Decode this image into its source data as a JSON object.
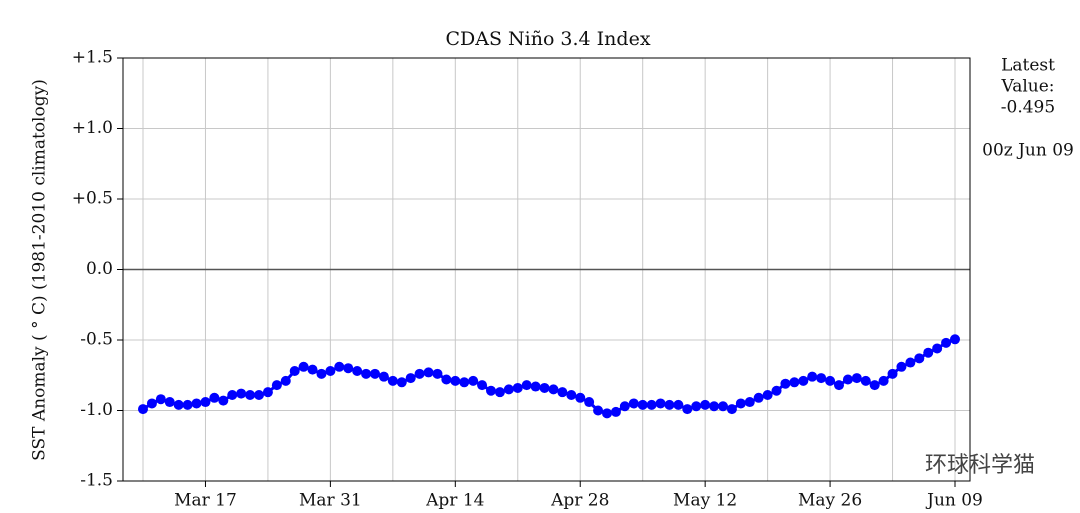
{
  "chart_data": {
    "type": "line",
    "title": "CDAS Niño 3.4 Index",
    "y_label": "SST Anomaly ( ° C) (1981-2010 climatology)",
    "side_note": [
      "Latest",
      "Value:",
      "-0.495"
    ],
    "timestamp": "00z Jun 09",
    "watermark": "环球科学猫",
    "categories": [
      "Mar 10",
      "Mar 11",
      "Mar 12",
      "Mar 13",
      "Mar 14",
      "Mar 15",
      "Mar 16",
      "Mar 17",
      "Mar 18",
      "Mar 19",
      "Mar 20",
      "Mar 21",
      "Mar 22",
      "Mar 23",
      "Mar 24",
      "Mar 25",
      "Mar 26",
      "Mar 27",
      "Mar 28",
      "Mar 29",
      "Mar 30",
      "Mar 31",
      "Apr 01",
      "Apr 02",
      "Apr 03",
      "Apr 04",
      "Apr 05",
      "Apr 06",
      "Apr 07",
      "Apr 08",
      "Apr 09",
      "Apr 10",
      "Apr 11",
      "Apr 12",
      "Apr 13",
      "Apr 14",
      "Apr 15",
      "Apr 16",
      "Apr 17",
      "Apr 18",
      "Apr 19",
      "Apr 20",
      "Apr 21",
      "Apr 22",
      "Apr 23",
      "Apr 24",
      "Apr 25",
      "Apr 26",
      "Apr 27",
      "Apr 28",
      "Apr 29",
      "Apr 30",
      "May 01",
      "May 02",
      "May 03",
      "May 04",
      "May 05",
      "May 06",
      "May 07",
      "May 08",
      "May 09",
      "May 10",
      "May 11",
      "May 12",
      "May 13",
      "May 14",
      "May 15",
      "May 16",
      "May 17",
      "May 18",
      "May 19",
      "May 20",
      "May 21",
      "May 22",
      "May 23",
      "May 24",
      "May 25",
      "May 26",
      "May 27",
      "May 28",
      "May 29",
      "May 30",
      "May 31",
      "Jun 01",
      "Jun 02",
      "Jun 03",
      "Jun 04",
      "Jun 05",
      "Jun 06",
      "Jun 07",
      "Jun 08",
      "Jun 09"
    ],
    "series": [
      {
        "name": "Niño 3.4",
        "color": "#0000ff",
        "values": [
          -0.99,
          -0.95,
          -0.92,
          -0.94,
          -0.96,
          -0.96,
          -0.95,
          -0.94,
          -0.91,
          -0.93,
          -0.89,
          -0.88,
          -0.89,
          -0.89,
          -0.87,
          -0.82,
          -0.79,
          -0.72,
          -0.69,
          -0.71,
          -0.74,
          -0.72,
          -0.69,
          -0.7,
          -0.72,
          -0.74,
          -0.74,
          -0.76,
          -0.79,
          -0.8,
          -0.77,
          -0.74,
          -0.73,
          -0.74,
          -0.78,
          -0.79,
          -0.8,
          -0.79,
          -0.82,
          -0.86,
          -0.87,
          -0.85,
          -0.84,
          -0.82,
          -0.83,
          -0.84,
          -0.85,
          -0.87,
          -0.89,
          -0.91,
          -0.94,
          -1.0,
          -1.02,
          -1.01,
          -0.97,
          -0.95,
          -0.96,
          -0.96,
          -0.95,
          -0.96,
          -0.96,
          -0.99,
          -0.97,
          -0.96,
          -0.97,
          -0.97,
          -0.99,
          -0.95,
          -0.94,
          -0.91,
          -0.89,
          -0.86,
          -0.81,
          -0.8,
          -0.79,
          -0.76,
          -0.77,
          -0.79,
          -0.82,
          -0.78,
          -0.77,
          -0.79,
          -0.82,
          -0.79,
          -0.74,
          -0.69,
          -0.66,
          -0.63,
          -0.59,
          -0.56,
          -0.52,
          -0.495
        ]
      }
    ],
    "xticks": [
      "Mar 17",
      "Mar 31",
      "Apr 14",
      "Apr 28",
      "May 12",
      "May 26",
      "Jun 09"
    ],
    "ylim": [
      -1.5,
      1.5
    ],
    "yticks": [
      {
        "value": -1.5,
        "label": "-1.5"
      },
      {
        "value": -1.0,
        "label": "-1.0"
      },
      -0.5,
      {
        "value": 0,
        "label": "0.0"
      },
      {
        "value": 0.5,
        "label": "+0.5"
      },
      {
        "value": 1.0,
        "label": "+1.0"
      },
      {
        "value": 1.5,
        "label": "+1.5"
      }
    ],
    "grid": true
  }
}
